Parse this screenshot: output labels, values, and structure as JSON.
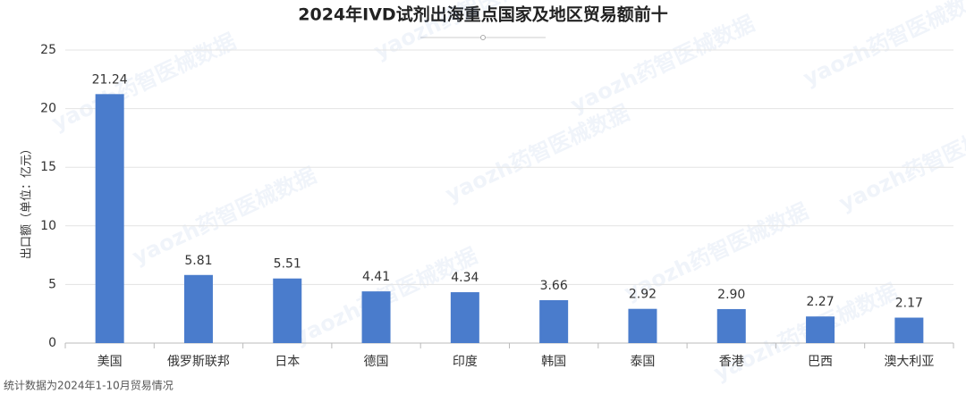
{
  "chart_data": {
    "type": "bar",
    "title": "2024年IVD试剂出海重点国家及地区贸易额前十",
    "y_label": "出口额（单位：亿元）",
    "footnote": "统计数据为2024年1-10月贸易情况",
    "watermark": "yaozh药智医械数据",
    "categories": [
      "美国",
      "俄罗斯联邦",
      "日本",
      "德国",
      "印度",
      "韩国",
      "泰国",
      "香港",
      "巴西",
      "澳大利亚"
    ],
    "values": [
      21.24,
      5.81,
      5.51,
      4.41,
      4.34,
      3.66,
      2.92,
      2.9,
      2.27,
      2.17
    ],
    "value_labels": [
      "21.24",
      "5.81",
      "5.51",
      "4.41",
      "4.34",
      "3.66",
      "2.92",
      "2.90",
      "2.27",
      "2.17"
    ],
    "color": "#4a7ccc",
    "ylim": [
      0,
      25
    ],
    "yticks": [
      0,
      5,
      10,
      15,
      20,
      25
    ],
    "grid": true
  }
}
